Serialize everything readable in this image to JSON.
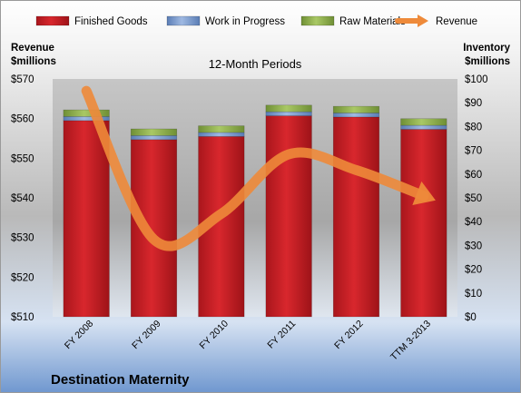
{
  "chart_data": {
    "type": "bar",
    "title": "12-Month Periods",
    "company": "Destination Maternity",
    "categories": [
      "FY 2008",
      "FY 2009",
      "FY 2010",
      "FY 2011",
      "FY 2012",
      "TTM 3-2013"
    ],
    "stacked": true,
    "series": [
      {
        "name": "Finished Goods",
        "axis": "right",
        "color": "#c42026",
        "values": [
          82.5,
          74.5,
          75.8,
          84.5,
          84,
          78.8
        ]
      },
      {
        "name": "Work in Progress",
        "axis": "right",
        "color": "#6d8fc7",
        "values": [
          1.7,
          1.7,
          1.7,
          1.7,
          1.7,
          1.7
        ]
      },
      {
        "name": "Raw Materials",
        "axis": "right",
        "color": "#8fb04a",
        "values": [
          2.8,
          2.8,
          2.8,
          2.8,
          2.8,
          2.8
        ]
      },
      {
        "name": "Revenue",
        "type": "line",
        "axis": "left",
        "color": "#ee8a3a",
        "values": [
          567,
          529.5,
          536,
          551,
          547,
          540.5
        ]
      }
    ],
    "y_left": {
      "label": [
        "Revenue",
        "$millions"
      ],
      "min": 510,
      "max": 570,
      "step": 10,
      "prefix": "$"
    },
    "y_right": {
      "label": [
        "Inventory",
        "$millions"
      ],
      "min": 0,
      "max": 100,
      "step": 10,
      "prefix": "$"
    },
    "legend_position": "top",
    "grid": false
  }
}
